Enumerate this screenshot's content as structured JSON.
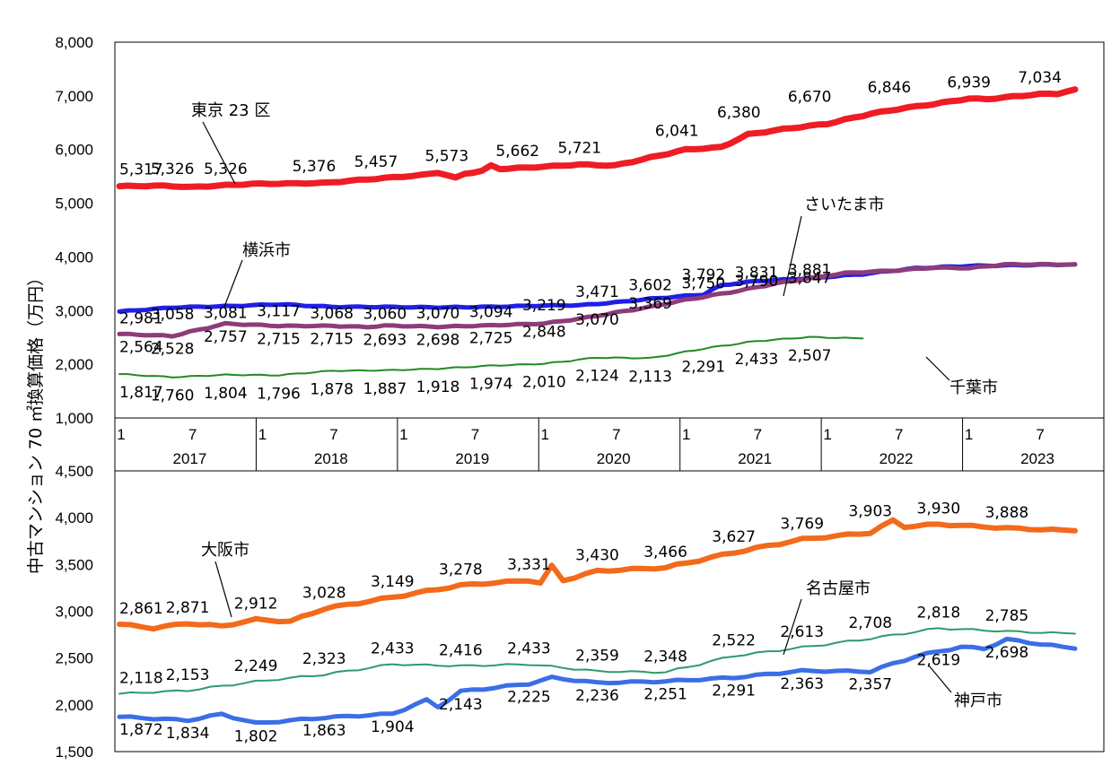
{
  "chart_data": [
    {
      "type": "line",
      "ylabel": "中古マンション 70 ㎡換算価格（万円）",
      "ylim": [
        1000,
        8000
      ],
      "yticks": [
        "8,000",
        "7,000",
        "6,000",
        "5,000",
        "4,000",
        "3,000",
        "2,000",
        "1,000"
      ],
      "months_per_series": 83,
      "x_months": [
        "1",
        "7"
      ],
      "years": [
        "2017",
        "2018",
        "2019",
        "2020",
        "2021",
        "2022",
        "2023"
      ],
      "series": [
        {
          "name": "東京 23 区",
          "color": "#ee1c24",
          "anchors": [
            [
              0,
              5317
            ],
            [
              5,
              5326
            ],
            [
              8,
              5300
            ],
            [
              11,
              5326
            ],
            [
              15,
              5360
            ],
            [
              23,
              5376
            ],
            [
              29,
              5457
            ],
            [
              34,
              5520
            ],
            [
              36,
              5573
            ],
            [
              38,
              5470
            ],
            [
              39,
              5550
            ],
            [
              41,
              5600
            ],
            [
              42,
              5700
            ],
            [
              43,
              5640
            ],
            [
              46,
              5662
            ],
            [
              52,
              5721
            ],
            [
              56,
              5700
            ],
            [
              60,
              5850
            ],
            [
              64,
              6000
            ],
            [
              68,
              6041
            ],
            [
              71,
              6280
            ],
            [
              75,
              6380
            ],
            [
              80,
              6480
            ],
            [
              85,
              6670
            ],
            [
              89,
              6780
            ],
            [
              92,
              6846
            ],
            [
              96,
              6950
            ],
            [
              98,
              6939
            ],
            [
              104,
              7034
            ],
            [
              106,
              7040
            ],
            [
              108,
              7120
            ]
          ],
          "labels": [
            [
              0,
              "5,317"
            ],
            [
              6,
              "5,326"
            ],
            [
              12,
              "5,326"
            ],
            [
              22,
              "5,376"
            ],
            [
              29,
              "5,457"
            ],
            [
              37,
              "5,573"
            ],
            [
              45,
              "5,662"
            ],
            [
              52,
              "5,721"
            ],
            [
              63,
              "6,041"
            ],
            [
              70,
              "6,380"
            ],
            [
              78,
              "6,670"
            ],
            [
              87,
              "6,846"
            ],
            [
              96,
              "6,939"
            ],
            [
              104,
              "7,034"
            ]
          ]
        },
        {
          "name": "横浜市",
          "color": "#1f1fe6",
          "anchors": [
            [
              0,
              2981
            ],
            [
              3,
              3020
            ],
            [
              6,
              3058
            ],
            [
              12,
              3081
            ],
            [
              18,
              3117
            ],
            [
              24,
              3070
            ],
            [
              30,
              3068
            ],
            [
              36,
              3060
            ],
            [
              42,
              3070
            ],
            [
              48,
              3094
            ],
            [
              52,
              3100
            ],
            [
              56,
              3150
            ],
            [
              60,
              3219
            ],
            [
              66,
              3300
            ],
            [
              68,
              3471
            ],
            [
              72,
              3550
            ],
            [
              78,
              3602
            ],
            [
              84,
              3680
            ],
            [
              90,
              3790
            ],
            [
              96,
              3831
            ],
            [
              102,
              3847
            ],
            [
              108,
              3860
            ]
          ],
          "labels": [
            [
              0,
              "2,981"
            ],
            [
              6,
              "3,058"
            ],
            [
              12,
              "3,081"
            ],
            [
              18,
              "3,117"
            ],
            [
              24,
              "3,068"
            ],
            [
              30,
              "3,060"
            ],
            [
              36,
              "3,070"
            ],
            [
              42,
              "3,094"
            ],
            [
              48,
              "3,219"
            ],
            [
              54,
              "3,471"
            ],
            [
              60,
              "3,602"
            ],
            [
              66,
              "3,792"
            ],
            [
              72,
              "3,831"
            ],
            [
              78,
              "3,881"
            ]
          ]
        },
        {
          "name": "さいたま市",
          "color": "#8e3b7a",
          "anchors": [
            [
              0,
              2564
            ],
            [
              6,
              2528
            ],
            [
              12,
              2757
            ],
            [
              18,
              2715
            ],
            [
              24,
              2715
            ],
            [
              28,
              2693
            ],
            [
              30,
              2720
            ],
            [
              36,
              2698
            ],
            [
              42,
              2725
            ],
            [
              48,
              2760
            ],
            [
              52,
              2848
            ],
            [
              56,
              2960
            ],
            [
              60,
              3070
            ],
            [
              64,
              3200
            ],
            [
              70,
              3369
            ],
            [
              74,
              3500
            ],
            [
              78,
              3600
            ],
            [
              82,
              3700
            ],
            [
              88,
              3750
            ],
            [
              92,
              3800
            ],
            [
              96,
              3790
            ],
            [
              100,
              3860
            ],
            [
              108,
              3860
            ]
          ],
          "labels": [
            [
              0,
              "2,564"
            ],
            [
              6,
              "2,528"
            ],
            [
              12,
              "2,757"
            ],
            [
              18,
              "2,715"
            ],
            [
              24,
              "2,715"
            ],
            [
              30,
              "2,693"
            ],
            [
              36,
              "2,698"
            ],
            [
              42,
              "2,725"
            ],
            [
              48,
              "2,848"
            ],
            [
              54,
              "3,070"
            ],
            [
              60,
              "3,369"
            ],
            [
              66,
              "3,750"
            ],
            [
              72,
              "3,790"
            ],
            [
              78,
              "3,847"
            ]
          ]
        },
        {
          "name": "千葉市",
          "color": "#218a21",
          "anchors": [
            [
              0,
              1817
            ],
            [
              6,
              1760
            ],
            [
              12,
              1804
            ],
            [
              18,
              1796
            ],
            [
              24,
              1878
            ],
            [
              30,
              1887
            ],
            [
              36,
              1918
            ],
            [
              42,
              1974
            ],
            [
              48,
              2010
            ],
            [
              54,
              2124
            ],
            [
              60,
              2113
            ],
            [
              66,
              2291
            ],
            [
              72,
              2433
            ],
            [
              78,
              2507
            ],
            [
              84,
              2480
            ]
          ],
          "labels": [
            [
              0,
              "1,817"
            ],
            [
              6,
              "1,760"
            ],
            [
              12,
              "1,804"
            ],
            [
              18,
              "1,796"
            ],
            [
              24,
              "1,878"
            ],
            [
              30,
              "1,887"
            ],
            [
              36,
              "1,918"
            ],
            [
              42,
              "1,974"
            ],
            [
              48,
              "2,010"
            ],
            [
              54,
              "2,124"
            ],
            [
              60,
              "2,113"
            ],
            [
              66,
              "2,291"
            ],
            [
              72,
              "2,433"
            ],
            [
              78,
              "2,507"
            ]
          ]
        }
      ],
      "callouts": [
        {
          "name": "東京 23 区"
        },
        {
          "name": "横浜市"
        },
        {
          "name": "さいたま市"
        },
        {
          "name": "千葉市"
        }
      ]
    },
    {
      "type": "line",
      "ylim": [
        1500,
        4500
      ],
      "yticks": [
        "4,500",
        "4,000",
        "3,500",
        "3,000",
        "2,500",
        "2,000",
        "1,500"
      ],
      "series": [
        {
          "name": "大阪市",
          "color": "#f26a1b",
          "anchors": [
            [
              0,
              2861
            ],
            [
              3,
              2820
            ],
            [
              6,
              2871
            ],
            [
              9,
              2840
            ],
            [
              12,
              2912
            ],
            [
              15,
              2890
            ],
            [
              18,
              3028
            ],
            [
              24,
              3149
            ],
            [
              30,
              3278
            ],
            [
              36,
              3331
            ],
            [
              37,
              3300
            ],
            [
              38,
              3480
            ],
            [
              39,
              3330
            ],
            [
              42,
              3430
            ],
            [
              48,
              3466
            ],
            [
              54,
              3627
            ],
            [
              60,
              3769
            ],
            [
              66,
              3840
            ],
            [
              68,
              3970
            ],
            [
              69,
              3903
            ],
            [
              72,
              3930
            ],
            [
              78,
              3888
            ],
            [
              84,
              3860
            ]
          ],
          "labels": [
            [
              0,
              "2,861"
            ],
            [
              6,
              "2,871"
            ],
            [
              12,
              "2,912"
            ],
            [
              18,
              "3,028"
            ],
            [
              24,
              "3,149"
            ],
            [
              30,
              "3,278"
            ],
            [
              36,
              "3,331"
            ],
            [
              42,
              "3,430"
            ],
            [
              48,
              "3,466"
            ],
            [
              54,
              "3,627"
            ],
            [
              60,
              "3,769"
            ],
            [
              66,
              "3,903"
            ],
            [
              72,
              "3,930"
            ],
            [
              78,
              "3,888"
            ]
          ]
        },
        {
          "name": "名古屋市",
          "color": "#2e9a6a",
          "anchors": [
            [
              0,
              2118
            ],
            [
              6,
              2153
            ],
            [
              12,
              2249
            ],
            [
              18,
              2323
            ],
            [
              24,
              2433
            ],
            [
              30,
              2416
            ],
            [
              36,
              2433
            ],
            [
              42,
              2359
            ],
            [
              48,
              2348
            ],
            [
              54,
              2522
            ],
            [
              60,
              2613
            ],
            [
              66,
              2708
            ],
            [
              72,
              2818
            ],
            [
              78,
              2785
            ],
            [
              84,
              2760
            ]
          ],
          "labels": [
            [
              0,
              "2,118"
            ],
            [
              6,
              "2,153"
            ],
            [
              12,
              "2,249"
            ],
            [
              18,
              "2,323"
            ],
            [
              24,
              "2,433"
            ],
            [
              30,
              "2,416"
            ],
            [
              36,
              "2,433"
            ],
            [
              42,
              "2,359"
            ],
            [
              48,
              "2,348"
            ],
            [
              54,
              "2,522"
            ],
            [
              60,
              "2,613"
            ],
            [
              66,
              "2,708"
            ],
            [
              72,
              "2,818"
            ],
            [
              78,
              "2,785"
            ]
          ]
        },
        {
          "name": "神戸市",
          "color": "#3b6ee6",
          "anchors": [
            [
              0,
              1872
            ],
            [
              6,
              1834
            ],
            [
              9,
              1900
            ],
            [
              12,
              1802
            ],
            [
              18,
              1863
            ],
            [
              24,
              1904
            ],
            [
              27,
              2050
            ],
            [
              28,
              1980
            ],
            [
              30,
              2143
            ],
            [
              36,
              2225
            ],
            [
              38,
              2290
            ],
            [
              42,
              2236
            ],
            [
              48,
              2251
            ],
            [
              54,
              2291
            ],
            [
              60,
              2363
            ],
            [
              66,
              2357
            ],
            [
              70,
              2520
            ],
            [
              74,
              2619
            ],
            [
              76,
              2600
            ],
            [
              78,
              2698
            ],
            [
              84,
              2600
            ]
          ],
          "labels": [
            [
              0,
              "1,872"
            ],
            [
              6,
              "1,834"
            ],
            [
              12,
              "1,802"
            ],
            [
              18,
              "1,863"
            ],
            [
              24,
              "1,904"
            ],
            [
              30,
              "2,143"
            ],
            [
              36,
              "2,225"
            ],
            [
              42,
              "2,236"
            ],
            [
              48,
              "2,251"
            ],
            [
              54,
              "2,291"
            ],
            [
              60,
              "2,363"
            ],
            [
              66,
              "2,357"
            ],
            [
              72,
              "2,619"
            ],
            [
              78,
              "2,698"
            ]
          ]
        }
      ]
    }
  ]
}
